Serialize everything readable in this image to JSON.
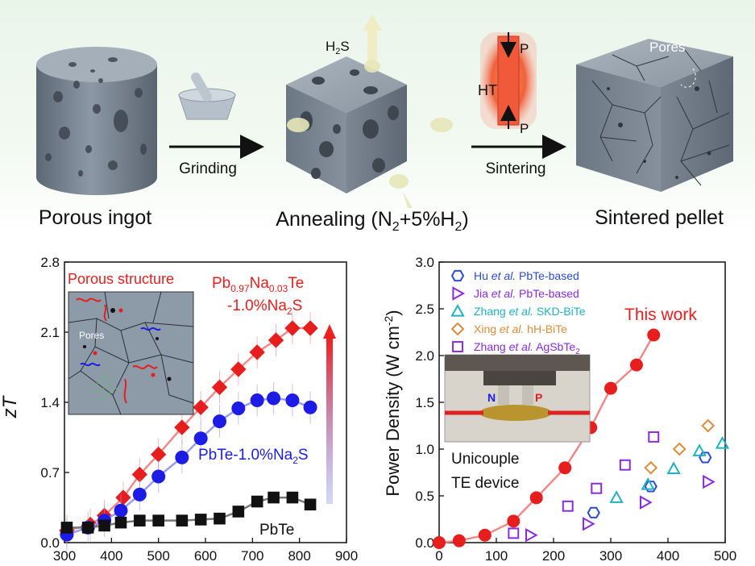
{
  "process": {
    "stage1": "Porous ingot",
    "step1": "Grinding",
    "stage2_prefix": "Annealing (N",
    "stage2_sub1": "2",
    "stage2_mid": "+5%H",
    "stage2_sub2": "2",
    "stage2_suffix": ")",
    "gas": "H",
    "gas_sub": "2",
    "gas_suffix": "S",
    "step2": "Sintering",
    "pressure": "P",
    "heat": "HT",
    "stage3": "Sintered  pellet",
    "pores": "Pores"
  },
  "colors": {
    "ingot": "#7b8794",
    "red": "#e61e1e",
    "blue": "#1c1ce6",
    "black": "#111111",
    "green_bg": "#eaf5ea"
  },
  "chart_data": [
    {
      "type": "line",
      "ylabel": "zT",
      "xlabel": "",
      "xlim": [
        300,
        900
      ],
      "ylim": [
        0.0,
        2.8
      ],
      "xticks": [
        "300",
        "400",
        "500",
        "600",
        "700",
        "800",
        "900"
      ],
      "yticks": [
        "0.0",
        "0.7",
        "1.4",
        "2.1",
        "2.8"
      ],
      "inset_title": "Porous structure",
      "inset_label": "Pores",
      "arrow": "up",
      "series": [
        {
          "name": "Pb0.97Na0.03Te -1.0%Na2S",
          "label_l1": "Pb",
          "label_l1_s1": "0.97",
          "label_l1_m": "Na",
          "label_l1_s2": "0.03",
          "label_l1_e": "Te",
          "label_l2": "-1.0%Na",
          "label_l2_s": "2",
          "label_l2_e": "S",
          "color": "#e61e1e",
          "marker": "diamond",
          "x": [
            305,
            355,
            385,
            425,
            460,
            500,
            550,
            590,
            630,
            670,
            710,
            750,
            785,
            823
          ],
          "y": [
            0.12,
            0.18,
            0.27,
            0.45,
            0.68,
            0.88,
            1.15,
            1.35,
            1.55,
            1.73,
            1.9,
            2.02,
            2.14,
            2.14
          ]
        },
        {
          "name": "PbTe-1.0%Na2S",
          "label_pre": "PbTe-1.0%Na",
          "label_s": "2",
          "label_e": "S",
          "color": "#1c1ce6",
          "marker": "circle",
          "x": [
            305,
            350,
            385,
            420,
            460,
            500,
            550,
            590,
            630,
            670,
            710,
            745,
            785,
            823
          ],
          "y": [
            0.08,
            0.15,
            0.22,
            0.32,
            0.48,
            0.66,
            0.85,
            1.04,
            1.21,
            1.34,
            1.42,
            1.44,
            1.42,
            1.35
          ]
        },
        {
          "name": "PbTe",
          "color": "#111111",
          "marker": "square",
          "x": [
            305,
            350,
            385,
            420,
            460,
            500,
            550,
            590,
            630,
            670,
            710,
            745,
            785,
            823
          ],
          "y": [
            0.15,
            0.15,
            0.17,
            0.2,
            0.22,
            0.22,
            0.22,
            0.23,
            0.24,
            0.31,
            0.41,
            0.45,
            0.45,
            0.38
          ]
        }
      ]
    },
    {
      "type": "scatter",
      "ylabel": "Power Density (W cm",
      "ylabel_sup": "-2",
      "ylabel_end": ")",
      "xlabel": "",
      "xlim": [
        0,
        500
      ],
      "ylim": [
        0.0,
        3.0
      ],
      "xticks": [
        "0",
        "100",
        "200",
        "300",
        "400",
        "500"
      ],
      "yticks": [
        "0.0",
        "0.5",
        "1.0",
        "1.5",
        "2.0",
        "2.5",
        "3.0"
      ],
      "device_label_l1": "Unicouple",
      "device_label_l2": "TE device",
      "device_n": "N",
      "device_p": "P",
      "this_work": {
        "label": "This work",
        "color": "#e61e1e",
        "x": [
          0,
          35,
          80,
          130,
          170,
          220,
          265,
          300,
          345,
          375
        ],
        "y": [
          0.0,
          0.02,
          0.08,
          0.23,
          0.48,
          0.8,
          1.23,
          1.65,
          1.9,
          2.22
        ]
      },
      "legend": [
        {
          "author": "Hu",
          "etal": " et al.",
          "rest": " PbTe-based",
          "color": "#2b4bd6",
          "marker": "hexagon"
        },
        {
          "author": "Jia",
          "etal": " et al.",
          "rest": " PbTe-based",
          "color": "#8a2be2",
          "marker": "triangle-right"
        },
        {
          "author": "Zhang",
          "etal": " et al.",
          "rest": " SKD-BiTe",
          "color": "#20b2c0",
          "marker": "triangle-up"
        },
        {
          "author": "Xing",
          "etal": " et al.",
          "rest": " hH-BiTe",
          "color": "#e08a3a",
          "marker": "diamond"
        },
        {
          "author": "Zhang",
          "etal": " et al.",
          "rest": " AgSbTe",
          "rest_sub": "2",
          "color": "#8a2be2",
          "marker": "square"
        }
      ],
      "others": [
        {
          "set": 0,
          "x": [
            270,
            370,
            465
          ],
          "y": [
            0.32,
            0.6,
            0.91
          ]
        },
        {
          "set": 1,
          "x": [
            160,
            260,
            360,
            470
          ],
          "y": [
            0.08,
            0.2,
            0.43,
            0.65
          ]
        },
        {
          "set": 2,
          "x": [
            310,
            365,
            410,
            455,
            495
          ],
          "y": [
            0.48,
            0.62,
            0.79,
            0.98,
            1.06
          ]
        },
        {
          "set": 3,
          "x": [
            370,
            420,
            470
          ],
          "y": [
            0.8,
            1.0,
            1.25
          ]
        },
        {
          "set": 4,
          "x": [
            130,
            225,
            275,
            325,
            375
          ],
          "y": [
            0.1,
            0.39,
            0.58,
            0.83,
            1.13
          ]
        }
      ]
    }
  ]
}
